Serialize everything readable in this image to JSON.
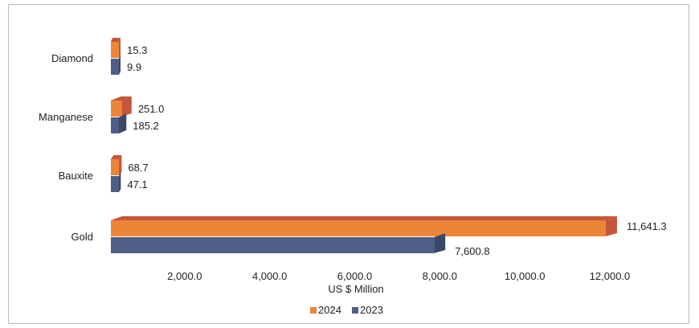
{
  "chart_data": {
    "type": "bar",
    "orientation": "horizontal",
    "style": "3d",
    "categories": [
      "Diamond",
      "Manganese",
      "Bauxite",
      "Gold"
    ],
    "series": [
      {
        "name": "2024",
        "color": "#ED8537",
        "values": [
          15.3,
          251.0,
          68.7,
          11641.3
        ],
        "labels": [
          "15.3",
          "251.0",
          "68.7",
          "11,641.3"
        ]
      },
      {
        "name": "2023",
        "color": "#4E5E86",
        "values": [
          9.9,
          185.2,
          47.1,
          7600.8
        ],
        "labels": [
          "9.9",
          "185.2",
          "47.1",
          "7,600.8"
        ]
      }
    ],
    "xticks": [
      "2,000.0",
      "4,000.0",
      "6,000.0",
      "8,000.0",
      "10,000.0",
      "12,000.0"
    ],
    "xtick_values": [
      2000,
      4000,
      6000,
      8000,
      10000,
      12000
    ],
    "xlabel": "US $   Million",
    "xlim": [
      0,
      12000
    ],
    "grid": false,
    "legend": "bottom-center"
  }
}
